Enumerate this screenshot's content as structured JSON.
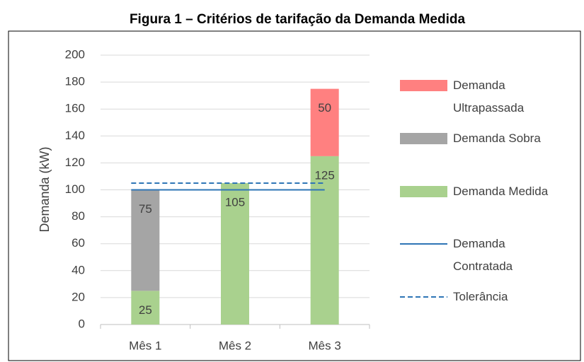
{
  "chart_data": {
    "type": "bar",
    "stacked": true,
    "title": "Figura 1 – Critérios de tarifação da Demanda Medida",
    "y_label": "Demanda (kW)",
    "categories": [
      "Mês 1",
      "Mês 2",
      "Mês 3"
    ],
    "series": [
      {
        "name": "Demanda Medida",
        "type": "bar",
        "color": "#a9d18e",
        "values": [
          25,
          105,
          125
        ]
      },
      {
        "name": "Demanda Sobra",
        "type": "bar",
        "color": "#a5a5a5",
        "values": [
          75,
          null,
          null
        ]
      },
      {
        "name": "Demanda Ultrapassada",
        "type": "bar",
        "color": "#ff8080",
        "values": [
          null,
          null,
          50
        ]
      },
      {
        "name": "Demanda Contratada",
        "type": "line",
        "color": "#2e75b6",
        "dashed": false,
        "values": [
          100,
          100,
          100
        ]
      },
      {
        "name": "Tolerância",
        "type": "line",
        "color": "#2e75b6",
        "dashed": true,
        "values": [
          105,
          105,
          105
        ]
      }
    ],
    "ylim": [
      0,
      200
    ],
    "yticks": [
      0,
      20,
      40,
      60,
      80,
      100,
      120,
      140,
      160,
      180,
      200
    ],
    "grid": true,
    "legend": "right"
  }
}
